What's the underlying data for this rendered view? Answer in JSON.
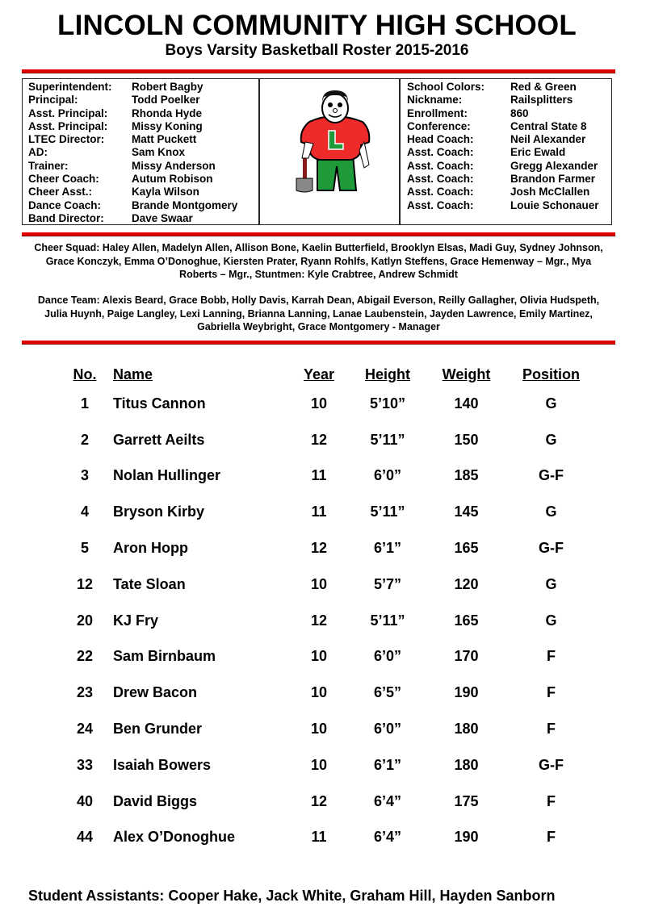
{
  "title": "LINCOLN COMMUNITY HIGH SCHOOL",
  "subtitle": "Boys Varsity Basketball Roster 2015-2016",
  "colors": {
    "accent": "#e00000",
    "mascot_red": "#ee2a2a",
    "mascot_green": "#1f9a3a"
  },
  "staff_left": [
    {
      "label": "Superintendent:",
      "value": "Robert Bagby"
    },
    {
      "label": "Principal:",
      "value": "Todd Poelker"
    },
    {
      "label": "Asst. Principal:",
      "value": "Rhonda Hyde"
    },
    {
      "label": "Asst. Principal:",
      "value": "Missy Koning"
    },
    {
      "label": "LTEC Director:",
      "value": "Matt Puckett"
    },
    {
      "label": "AD:",
      "value": "Sam Knox"
    },
    {
      "label": "Trainer:",
      "value": "Missy Anderson"
    },
    {
      "label": "Cheer Coach:",
      "value": "Autum Robison"
    },
    {
      "label": "Cheer Asst.:",
      "value": "Kayla Wilson"
    },
    {
      "label": "Dance Coach:",
      "value": "Brande Montgomery"
    },
    {
      "label": "Band Director:",
      "value": "Dave Swaar"
    }
  ],
  "staff_right": [
    {
      "label": "School Colors:",
      "value": "Red & Green"
    },
    {
      "label": "Nickname:",
      "value": "Railsplitters"
    },
    {
      "label": "Enrollment:",
      "value": "860"
    },
    {
      "label": "Conference:",
      "value": "Central State 8"
    },
    {
      "label": "Head Coach:",
      "value": "Neil Alexander"
    },
    {
      "label": "Asst. Coach:",
      "value": "Eric Ewald"
    },
    {
      "label": "Asst. Coach:",
      "value": "Gregg Alexander"
    },
    {
      "label": "Asst. Coach:",
      "value": "Brandon Farmer"
    },
    {
      "label": "Asst. Coach:",
      "value": "Josh McClallen"
    },
    {
      "label": "Asst. Coach:",
      "value": "Louie Schonauer"
    }
  ],
  "mascot": {
    "letter": "L"
  },
  "cheer_squad": "Cheer Squad:  Haley Allen, Madelyn Allen, Allison Bone, Kaelin Butterfield, Brooklyn Elsas, Madi Guy, Sydney Johnson, Grace Konczyk, Emma O’Donoghue, Kiersten Prater, Ryann Rohlfs, Katlyn Steffens, Grace Hemenway – Mgr., Mya Roberts – Mgr., Stuntmen:  Kyle Crabtree, Andrew Schmidt",
  "dance_team": "Dance Team: Alexis Beard, Grace Bobb, Holly Davis, Karrah Dean, Abigail Everson, Reilly Gallagher, Olivia Hudspeth, Julia Huynh, Paige Langley, Lexi Lanning, Brianna Lanning, Lanae Laubenstein, Jayden Lawrence, Emily Martinez, Gabriella Weybright, Grace Montgomery - Manager",
  "roster": {
    "headers": [
      "No.",
      "Name",
      "Year",
      "Height",
      "Weight",
      "Position"
    ],
    "rows": [
      [
        "1",
        "Titus Cannon",
        "10",
        "5’10”",
        "140",
        "G"
      ],
      [
        "2",
        "Garrett Aeilts",
        "12",
        "5’11”",
        "150",
        "G"
      ],
      [
        "3",
        "Nolan Hullinger",
        "11",
        "6’0”",
        "185",
        "G-F"
      ],
      [
        "4",
        "Bryson Kirby",
        "11",
        "5’11”",
        "145",
        "G"
      ],
      [
        "5",
        "Aron Hopp",
        "12",
        "6’1”",
        "165",
        "G-F"
      ],
      [
        "12",
        "Tate Sloan",
        "10",
        "5’7”",
        "120",
        "G"
      ],
      [
        "20",
        "KJ Fry",
        "12",
        "5’11”",
        "165",
        "G"
      ],
      [
        "22",
        "Sam Birnbaum",
        "10",
        "6’0”",
        "170",
        "F"
      ],
      [
        "23",
        "Drew Bacon",
        "10",
        "6’5”",
        "190",
        "F"
      ],
      [
        "24",
        "Ben Grunder",
        "10",
        "6’0”",
        "180",
        "F"
      ],
      [
        "33",
        "Isaiah Bowers",
        "10",
        "6’1”",
        "180",
        "G-F"
      ],
      [
        "40",
        "David Biggs",
        "12",
        "6’4”",
        "175",
        "F"
      ],
      [
        "44",
        "Alex O’Donoghue",
        "11",
        "6’4”",
        "190",
        "F"
      ]
    ]
  },
  "footer": "Student Assistants:  Cooper Hake, Jack White, Graham Hill, Hayden Sanborn"
}
